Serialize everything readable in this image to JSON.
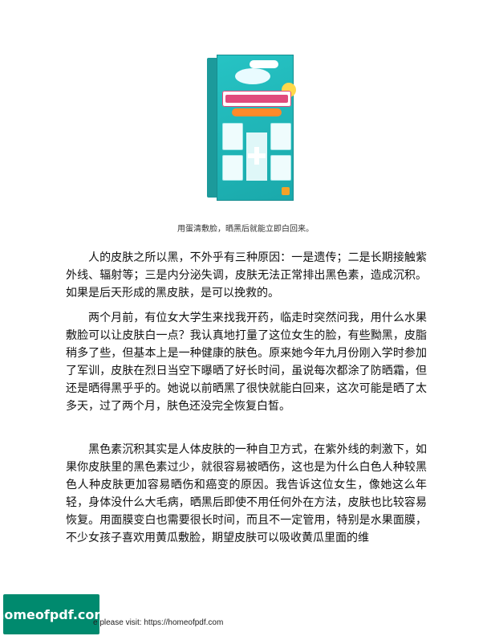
{
  "figure": {
    "caption": "用蛋清敷脸，晒黑后就能立即白回来。"
  },
  "body": {
    "paragraphs": [
      "人的皮肤之所以黑，不外乎有三种原因：一是遗传；二是长期接触紫外线、辐射等；三是内分泌失调，皮肤无法正常排出黑色素，造成沉积。如果是后天形成的黑皮肤，是可以挽救的。",
      "两个月前，有位女大学生来找我开药，临走时突然问我，用什么水果敷脸可以让皮肤白一点？我认真地打量了这位女生的脸，有些黝黑，皮脂稍多了些，但基本上是一种健康的肤色。原来她今年九月份刚入学时参加了军训，皮肤在烈日当空下曝晒了好长时间，虽说每次都涂了防晒霜，但还是晒得黑乎乎的。她说以前晒黑了很快就能白回来，这次可能是晒了太多天，过了两个月，肤色还没完全恢复白皙。",
      "黑色素沉积其实是人体皮肤的一种自卫方式，在紫外线的刺激下，如果你皮肤里的黑色素过少，就很容易被晒伤，这也是为什么白色人种较黑色人种皮肤更加容易晒伤和癌变的原因。我告诉这位女生，像她这么年轻，身体没什么大毛病，晒黑后即使不用任何外在方法，皮肤也比较容易恢复。用面膜变白也需要很长时间，而且不一定管用，特别是水果面膜，不少女孩子喜欢用黄瓜敷脸，期望皮肤可以吸收黄瓜里面的维"
    ]
  },
  "footer": {
    "logo_text": "homeofpdf.com",
    "note": "e please visit: https://homeofpdf.com"
  },
  "colors": {
    "cover_teal": "#1aa9ab",
    "cover_title_pink": "#e04a7c",
    "cover_subtitle_orange": "#ff8a2a",
    "logo_green": "#008a6e"
  }
}
